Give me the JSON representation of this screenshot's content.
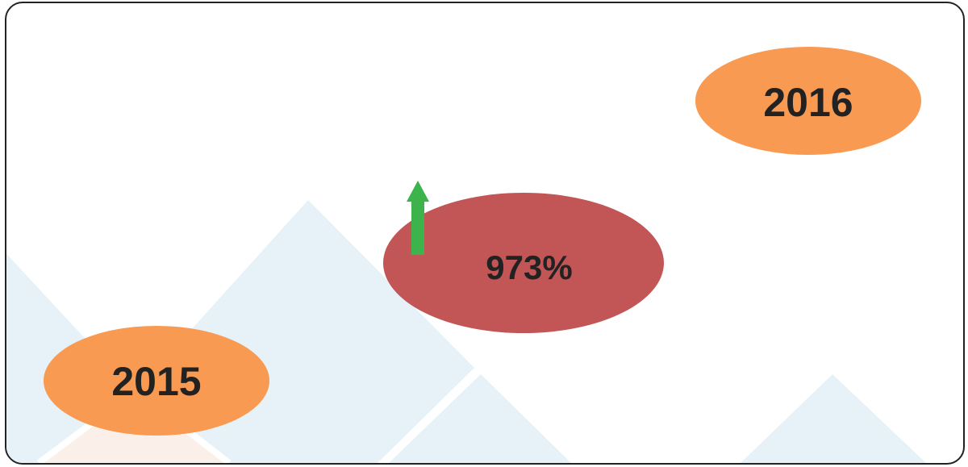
{
  "colors": {
    "year_bubble": "#F89A52",
    "change_bubble": "#C25555",
    "arrow": "#3CB44B",
    "mountain_blue": "#E6F1F8",
    "mountain_peach": "#FBF0E9",
    "text": "#222222"
  },
  "start_year": {
    "label": "2015"
  },
  "end_year": {
    "label": "2016"
  },
  "change": {
    "label": "973%",
    "direction_icon": "arrow-up-icon",
    "direction": "up"
  }
}
